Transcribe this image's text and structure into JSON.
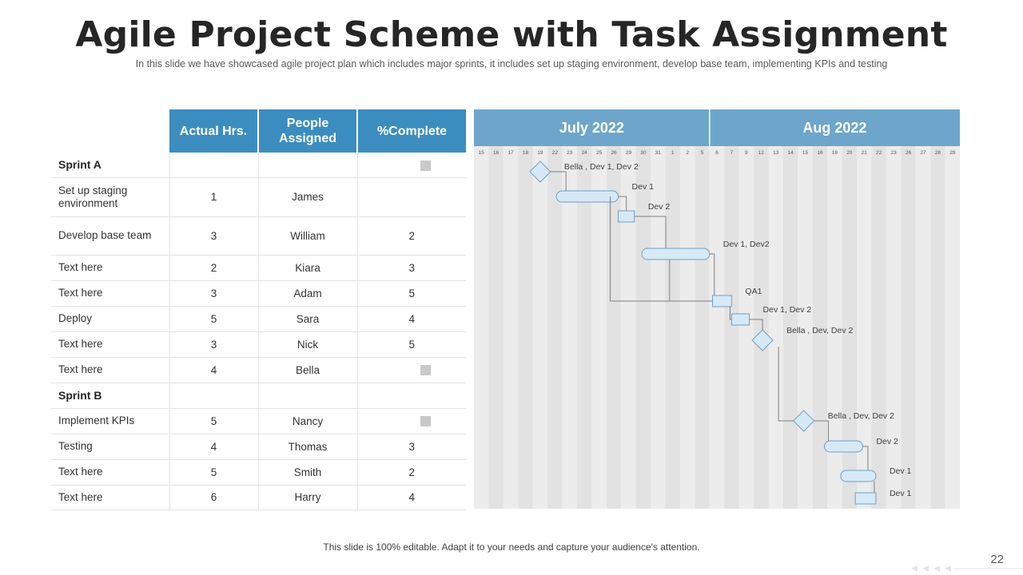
{
  "slide": {
    "title": "Agile Project Scheme with Task Assignment",
    "subtitle": "In this slide we have showcased agile project plan which includes major sprints, it includes set up staging environment,  develop  base team, implementing KPIs and testing",
    "footer": "This slide is 100% editable. Adapt it to your needs and capture your audience's attention.",
    "page_number": "22"
  },
  "table": {
    "headers": [
      "Actual Hrs.",
      "People\nAssigned",
      "%Complete"
    ],
    "rows": [
      {
        "type": "sprint",
        "name": "Sprint A",
        "hrs": "",
        "person": "",
        "complete": "",
        "marker": true
      },
      {
        "type": "task",
        "name": "Set up staging environment",
        "hrs": "1",
        "person": "James",
        "complete": "",
        "marker": false
      },
      {
        "type": "task",
        "name": "Develop  base team",
        "hrs": "3",
        "person": "William",
        "complete": "2",
        "marker": false
      },
      {
        "type": "task",
        "name": "Text here",
        "hrs": "2",
        "person": "Kiara",
        "complete": "3",
        "marker": false
      },
      {
        "type": "task",
        "name": "Text here",
        "hrs": "3",
        "person": "Adam",
        "complete": "5",
        "marker": false
      },
      {
        "type": "task",
        "name": "Deploy",
        "hrs": "5",
        "person": "Sara",
        "complete": "4",
        "marker": false
      },
      {
        "type": "task",
        "name": "Text here",
        "hrs": "3",
        "person": "Nick",
        "complete": "5",
        "marker": false
      },
      {
        "type": "task",
        "name": "Text here",
        "hrs": "4",
        "person": "Bella",
        "complete": "",
        "marker": true
      },
      {
        "type": "sprint",
        "name": "Sprint B",
        "hrs": "",
        "person": "",
        "complete": "",
        "marker": false
      },
      {
        "type": "task",
        "name": "Implement  KPIs",
        "hrs": "5",
        "person": "Nancy",
        "complete": "",
        "marker": true
      },
      {
        "type": "task",
        "name": "Testing",
        "hrs": "4",
        "person": "Thomas",
        "complete": "3",
        "marker": false
      },
      {
        "type": "task",
        "name": "Text here",
        "hrs": "5",
        "person": "Smith",
        "complete": "2",
        "marker": false
      },
      {
        "type": "task",
        "name": "Text here",
        "hrs": "6",
        "person": "Harry",
        "complete": "4",
        "marker": false
      }
    ]
  },
  "gantt": {
    "months": [
      "July 2022",
      "Aug 2022"
    ],
    "days": [
      "15",
      "16",
      "17",
      "18",
      "19",
      "22",
      "23",
      "24",
      "25",
      "26",
      "29",
      "30",
      "31",
      "1",
      "2",
      "5",
      "6",
      "7",
      "9",
      "12",
      "13",
      "14",
      "15",
      "16",
      "19",
      "20",
      "21",
      "22",
      "23",
      "26",
      "27",
      "28",
      "29"
    ],
    "colors": {
      "header": "#6ea6cb",
      "bar_fill": "#d6e9f6",
      "bar_stroke": "#6f9fc4",
      "stripe_a": "#ececec",
      "stripe_b": "#e2e2e2"
    },
    "items": [
      {
        "shape": "diamond",
        "start": 4.5,
        "end": 4.5,
        "label": "Bella , Dev 1, Dev 2"
      },
      {
        "shape": "pill",
        "start": 5.6,
        "end": 9.8,
        "label": "Dev 1"
      },
      {
        "shape": "rect",
        "start": 9.8,
        "end": 10.9,
        "label": "Dev 2"
      },
      {
        "shape": "pill",
        "start": 11.4,
        "end": 16.0,
        "label": "Dev 1, Dev2"
      },
      {
        "shape": "rect",
        "start": 16.2,
        "end": 17.5,
        "label": "QA1"
      },
      {
        "shape": "rect",
        "start": 17.5,
        "end": 18.7,
        "label": "Dev 1, Dev 2"
      },
      {
        "shape": "diamond",
        "start": 19.6,
        "end": 19.6,
        "label": "Bella , Dev, Dev 2"
      },
      {
        "shape": "diamond",
        "start": 22.4,
        "end": 22.4,
        "label": "Bella , Dev, Dev 2"
      },
      {
        "shape": "pill",
        "start": 23.8,
        "end": 26.4,
        "label": "Dev 2"
      },
      {
        "shape": "pill",
        "start": 24.9,
        "end": 27.3,
        "label": "Dev 1"
      },
      {
        "shape": "rect",
        "start": 25.9,
        "end": 27.3,
        "label": "Dev 1"
      }
    ]
  }
}
